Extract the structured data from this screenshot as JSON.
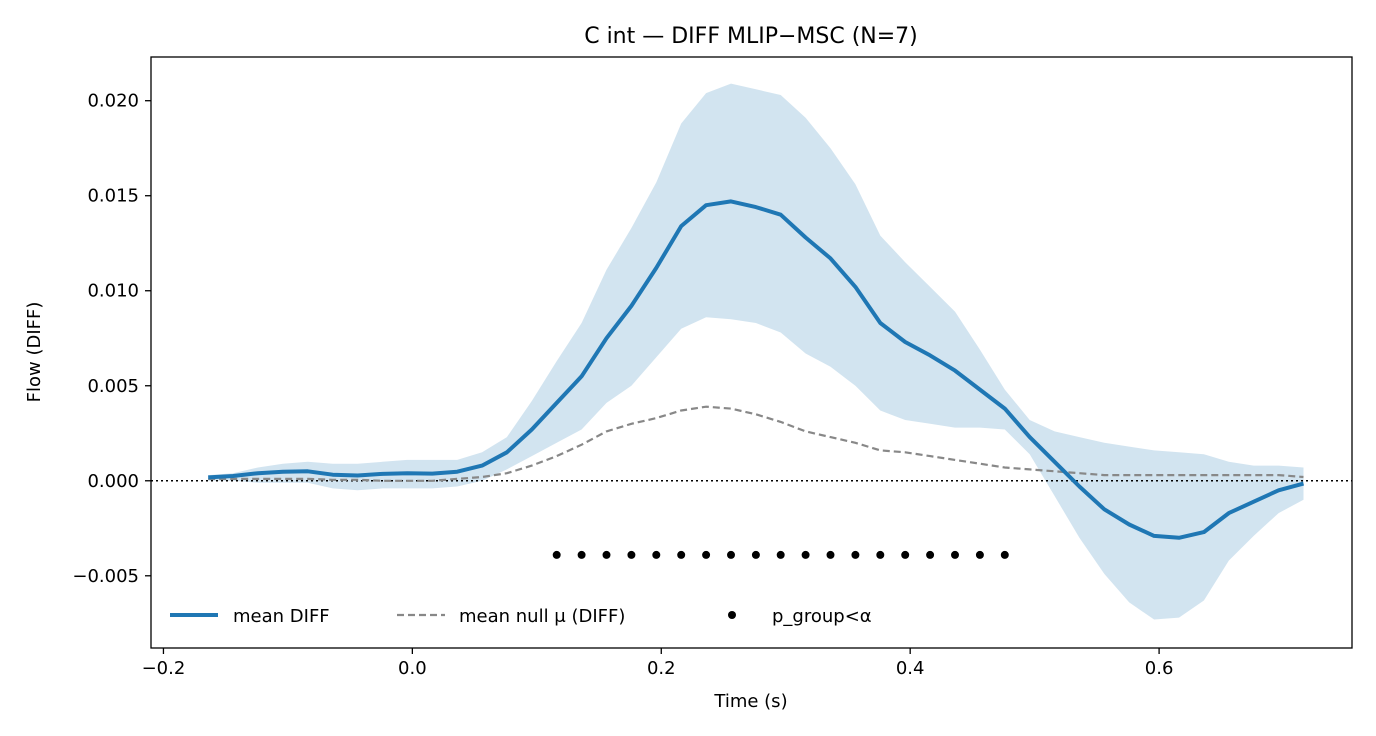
{
  "chart_data": {
    "type": "line",
    "title": "C int — DIFF MLIP−MSC (N=7)",
    "xlabel": "Time (s)",
    "ylabel": "Flow (DIFF)",
    "xlim": [
      -0.21,
      0.755
    ],
    "ylim": [
      -0.0088,
      0.0223
    ],
    "xticks": [
      -0.2,
      0.0,
      0.2,
      0.4,
      0.6
    ],
    "xtick_labels": [
      "−0.2",
      "0.0",
      "0.2",
      "0.4",
      "0.6"
    ],
    "yticks": [
      -0.005,
      0.0,
      0.005,
      0.01,
      0.015,
      0.02
    ],
    "ytick_labels": [
      "−0.005",
      "0.000",
      "0.005",
      "0.010",
      "0.015",
      "0.020"
    ],
    "grid": false,
    "legend_position": "lower-left",
    "reference_line": {
      "y": 0,
      "style": "dotted",
      "color": "#000000"
    },
    "x": [
      -0.164,
      -0.144,
      -0.124,
      -0.104,
      -0.084,
      -0.064,
      -0.044,
      -0.024,
      -0.004,
      0.016,
      0.036,
      0.056,
      0.076,
      0.096,
      0.116,
      0.136,
      0.156,
      0.176,
      0.196,
      0.216,
      0.236,
      0.256,
      0.276,
      0.296,
      0.316,
      0.336,
      0.356,
      0.376,
      0.396,
      0.416,
      0.436,
      0.456,
      0.476,
      0.496,
      0.516,
      0.536,
      0.556,
      0.576,
      0.596,
      0.616,
      0.636,
      0.656,
      0.676,
      0.696,
      0.716
    ],
    "series": [
      {
        "name": "mean DIFF",
        "color": "#1f77b4",
        "style": "solid",
        "values": [
          0.00018,
          0.00025,
          0.0004,
          0.00048,
          0.0005,
          0.00032,
          0.00028,
          0.00036,
          0.0004,
          0.00038,
          0.00048,
          0.0008,
          0.0015,
          0.0027,
          0.0041,
          0.0055,
          0.0075,
          0.0092,
          0.0112,
          0.0134,
          0.0145,
          0.0147,
          0.0144,
          0.014,
          0.0128,
          0.0117,
          0.0102,
          0.0083,
          0.0073,
          0.0066,
          0.0058,
          0.0048,
          0.0038,
          0.0023,
          0.001,
          -0.0003,
          -0.0015,
          -0.0023,
          -0.0029,
          -0.003,
          -0.0027,
          -0.0017,
          -0.0011,
          -0.0005,
          -0.00015
        ]
      },
      {
        "name": "mean null μ (DIFF)",
        "color": "#888888",
        "style": "dashed",
        "values": [
          0.0001,
          0.0001,
          0.0001,
          0.0001,
          0.0001,
          5e-05,
          5e-05,
          0.0,
          0.0,
          0.0,
          0.0001,
          0.0002,
          0.0004,
          0.0008,
          0.0013,
          0.0019,
          0.0026,
          0.003,
          0.0033,
          0.0037,
          0.0039,
          0.0038,
          0.0035,
          0.0031,
          0.0026,
          0.0023,
          0.002,
          0.0016,
          0.0015,
          0.0013,
          0.0011,
          0.0009,
          0.0007,
          0.0006,
          0.0005,
          0.0004,
          0.0003,
          0.0003,
          0.0003,
          0.0003,
          0.0003,
          0.0003,
          0.0003,
          0.0003,
          0.0002
        ]
      }
    ],
    "band": {
      "color": "#1f77b4",
      "upper": [
        0.0003,
        0.0004,
        0.0007,
        0.0009,
        0.001,
        0.0009,
        0.0009,
        0.001,
        0.0011,
        0.0011,
        0.0011,
        0.0015,
        0.0023,
        0.0042,
        0.0063,
        0.0083,
        0.0111,
        0.0133,
        0.0157,
        0.0188,
        0.0204,
        0.0209,
        0.0206,
        0.0203,
        0.0191,
        0.0175,
        0.0156,
        0.0129,
        0.0115,
        0.0102,
        0.0089,
        0.0069,
        0.0048,
        0.0032,
        0.0026,
        0.0023,
        0.002,
        0.0018,
        0.0016,
        0.0015,
        0.0014,
        0.001,
        0.0008,
        0.0008,
        0.0007
      ],
      "lower": [
        0.0,
        0.0,
        -0.0001,
        -0.0001,
        -0.0001,
        -0.0004,
        -0.0005,
        -0.0004,
        -0.0004,
        -0.0004,
        -0.0003,
        0.0,
        0.0006,
        0.0013,
        0.002,
        0.0027,
        0.0041,
        0.005,
        0.0065,
        0.008,
        0.0086,
        0.0085,
        0.0083,
        0.0078,
        0.0067,
        0.006,
        0.005,
        0.0037,
        0.0032,
        0.003,
        0.0028,
        0.0028,
        0.0027,
        0.0014,
        -0.0008,
        -0.003,
        -0.0049,
        -0.0064,
        -0.0073,
        -0.0072,
        -0.0063,
        -0.0042,
        -0.0029,
        -0.0017,
        -0.001
      ]
    },
    "significance": {
      "name": "p_group<α",
      "color": "#000000",
      "y": -0.0039,
      "x": [
        0.116,
        0.136,
        0.156,
        0.176,
        0.196,
        0.216,
        0.236,
        0.256,
        0.276,
        0.296,
        0.316,
        0.336,
        0.356,
        0.376,
        0.396,
        0.416,
        0.436,
        0.456,
        0.476
      ]
    }
  }
}
